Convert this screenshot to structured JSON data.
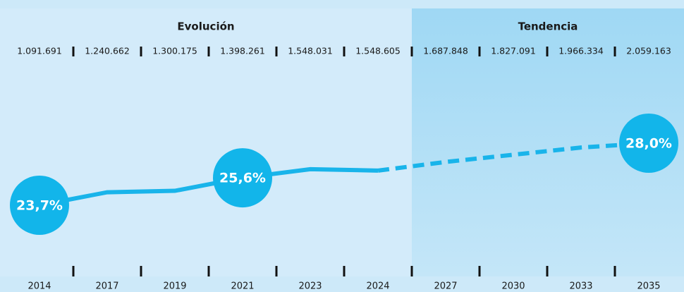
{
  "chart_data": {
    "type": "line",
    "sections": [
      {
        "title": "Evolución",
        "categories": [
          "2014",
          "2017",
          "2019",
          "2021",
          "2023",
          "2024"
        ]
      },
      {
        "title": "Tendencia",
        "categories": [
          "2027",
          "2030",
          "2033",
          "2035"
        ]
      }
    ],
    "categories": [
      "2014",
      "2017",
      "2019",
      "2021",
      "2023",
      "2024",
      "2027",
      "2030",
      "2033",
      "2035"
    ],
    "totals": [
      {
        "value": 1091691,
        "label": "1.091.691"
      },
      {
        "value": 1240662,
        "label": "1.240.662"
      },
      {
        "value": 1300175,
        "label": "1.300.175"
      },
      {
        "value": 1398261,
        "label": "1.398.261"
      },
      {
        "value": 1548031,
        "label": "1.548.031"
      },
      {
        "value": 1548605,
        "label": "1.548.605"
      },
      {
        "value": 1687848,
        "label": "1.687.848"
      },
      {
        "value": 1827091,
        "label": "1.827.091"
      },
      {
        "value": 1966334,
        "label": "1.966.334"
      },
      {
        "value": 2059163,
        "label": "2.059.163"
      }
    ],
    "series": [
      {
        "color": "#19b4ea",
        "dashed": false,
        "values": [
          23.7,
          24.6,
          24.7,
          25.6,
          26.2,
          26.1,
          null,
          null,
          null,
          null
        ],
        "value_labels": [
          "23,7%",
          null,
          null,
          "25,6%",
          null,
          null,
          null,
          null,
          null,
          null
        ]
      },
      {
        "color": "#19b4ea",
        "dashed": true,
        "values": [
          null,
          null,
          null,
          null,
          null,
          26.1,
          26.7,
          27.2,
          27.7,
          28.0
        ],
        "value_labels": [
          null,
          null,
          null,
          null,
          null,
          null,
          null,
          null,
          null,
          "28,0%"
        ]
      }
    ]
  }
}
